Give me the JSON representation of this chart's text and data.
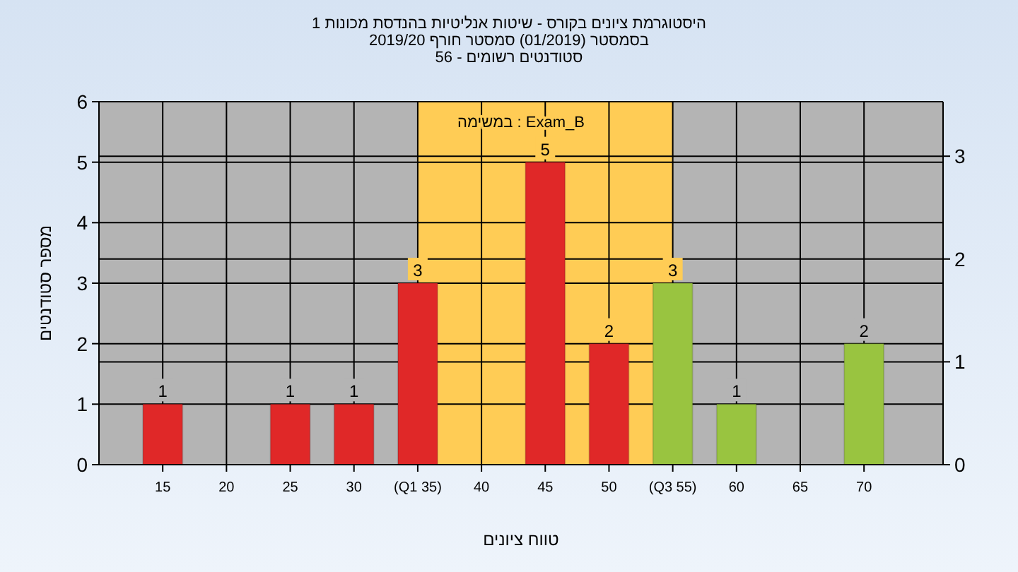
{
  "chart_data": {
    "type": "bar",
    "title": "היסטוגרמת ציונים בקורס - שיטות אנליטיות בהנדסת מכונות 1\nבסמסטר (01/2019) סמסטר חורף 2019/20\nסטודנטים רשומים - 56",
    "xlabel": "טווח ציונים",
    "ylabel": "מספר סטודנטים",
    "annotations": [
      "במשימה : Exam_B"
    ],
    "x": [
      15,
      25,
      30,
      35,
      45,
      50,
      55,
      60,
      70
    ],
    "values": [
      1,
      1,
      1,
      3,
      5,
      2,
      3,
      1,
      2
    ],
    "colors": [
      "#e02828",
      "#e02828",
      "#e02828",
      "#e02828",
      "#e02828",
      "#e02828",
      "#99c440",
      "#99c440",
      "#99c440"
    ],
    "data_labels": true,
    "xlim": [
      10,
      76.2
    ],
    "xticks": [
      15,
      20,
      25,
      30,
      {
        "value": 35,
        "label": "(Q1 35)"
      },
      40,
      45,
      50,
      {
        "value": 55,
        "label": "(Q3 55)"
      },
      60,
      65,
      70
    ],
    "ylim": [
      0,
      6
    ],
    "yticks": [
      0,
      1,
      2,
      3,
      4,
      5,
      6
    ],
    "y2lim": [
      0,
      3.53
    ],
    "y2ticks": [
      0,
      1,
      2,
      3
    ],
    "bands": [
      {
        "axis": "x",
        "from": 35,
        "to": 55,
        "color": "#ffcc55"
      }
    ],
    "grid": true
  }
}
